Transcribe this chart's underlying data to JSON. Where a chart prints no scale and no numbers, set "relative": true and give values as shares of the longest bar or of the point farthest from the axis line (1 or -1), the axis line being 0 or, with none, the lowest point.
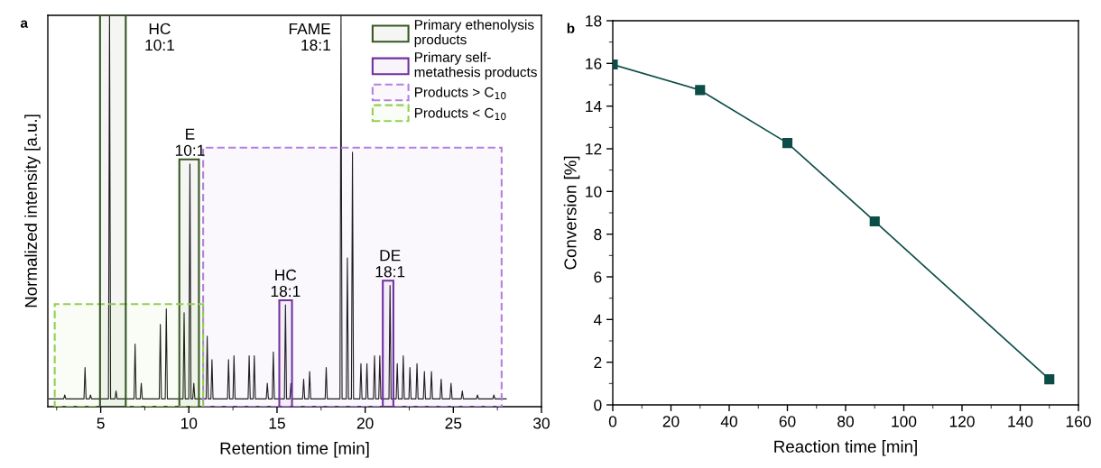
{
  "chart_data": [
    {
      "type": "line",
      "title": "a",
      "xlabel": "Retention time [min]",
      "ylabel": "Normalized intensity [a.u.]",
      "relative": true,
      "xlim": [
        2,
        30
      ],
      "xticks": [
        5,
        10,
        15,
        20,
        25,
        30
      ],
      "tick_labels": "x",
      "legend": "top right",
      "grid": false,
      "series": [
        {
          "color": "#1a1a1a",
          "x": [
            2.07,
            2.9,
            2.96,
            3.02,
            4.05,
            4.11,
            4.17,
            4.36,
            4.42,
            4.48,
            5.44,
            5.5,
            5.56,
            5.81,
            5.87,
            5.93,
            6.89,
            6.95,
            7.01,
            7.24,
            7.3,
            7.36,
            8.32,
            8.38,
            8.44,
            8.66,
            8.72,
            8.78,
            9.67,
            9.73,
            9.79,
            10.0,
            10.06,
            10.12,
            10.22,
            10.28,
            10.34,
            10.98,
            11.04,
            11.1,
            11.25,
            11.31,
            11.37,
            12.19,
            12.25,
            12.31,
            12.5,
            12.56,
            12.62,
            13.36,
            13.42,
            13.48,
            13.65,
            13.71,
            13.77,
            14.39,
            14.45,
            14.51,
            14.73,
            14.79,
            14.85,
            15.42,
            15.48,
            15.54,
            15.73,
            15.79,
            15.85,
            16.45,
            16.51,
            16.57,
            16.79,
            16.85,
            16.91,
            17.73,
            17.79,
            17.85,
            18.57,
            18.63,
            18.69,
            18.93,
            18.99,
            19.05,
            19.22,
            19.28,
            19.34,
            19.7,
            19.76,
            19.82,
            20.04,
            20.1,
            20.16,
            20.47,
            20.53,
            20.59,
            20.77,
            20.83,
            20.89,
            21.35,
            21.41,
            21.47,
            21.76,
            21.82,
            21.88,
            22.1,
            22.16,
            22.22,
            22.48,
            22.54,
            22.6,
            22.88,
            22.94,
            23.0,
            23.3,
            23.36,
            23.42,
            23.7,
            23.76,
            23.82,
            24.25,
            24.31,
            24.37,
            24.81,
            24.87,
            24.93,
            25.45,
            25.51,
            25.57,
            26.31,
            26.37,
            26.43,
            27.24,
            27.3,
            27.36,
            28.0
          ],
          "values": [
            0.02,
            0.02,
            0.03,
            0.02,
            0.02,
            0.1,
            0.02,
            0.02,
            0.03,
            0.02,
            0.02,
            1,
            0.02,
            0.02,
            0.04,
            0.02,
            0.02,
            0.16,
            0.02,
            0.02,
            0.06,
            0.02,
            0.02,
            0.21,
            0.02,
            0.02,
            0.25,
            0.02,
            0.02,
            0.24,
            0.02,
            0.02,
            0.62,
            0.02,
            0.02,
            0.06,
            0.02,
            0.02,
            0.18,
            0.02,
            0.02,
            0.12,
            0.02,
            0.02,
            0.12,
            0.02,
            0.02,
            0.13,
            0.02,
            0.02,
            0.13,
            0.02,
            0.02,
            0.13,
            0.02,
            0.02,
            0.06,
            0.02,
            0.02,
            0.14,
            0.02,
            0.02,
            0.26,
            0.02,
            0.02,
            0.06,
            0.02,
            0.02,
            0.07,
            0.02,
            0.02,
            0.09,
            0.02,
            0.02,
            0.1,
            0.02,
            0.02,
            1,
            0.02,
            0.02,
            0.38,
            0.02,
            0.02,
            0.65,
            0.02,
            0.02,
            0.11,
            0.02,
            0.02,
            0.11,
            0.02,
            0.02,
            0.13,
            0.02,
            0.02,
            0.13,
            0.02,
            0.02,
            0.31,
            0.02,
            0.02,
            0.11,
            0.02,
            0.02,
            0.13,
            0.02,
            0.02,
            0.1,
            0.02,
            0.02,
            0.11,
            0.02,
            0.02,
            0.09,
            0.02,
            0.02,
            0.09,
            0.02,
            0.02,
            0.07,
            0.02,
            0.02,
            0.06,
            0.02,
            0.02,
            0.04,
            0.02,
            0.02,
            0.03,
            0.02,
            0.02,
            0.03,
            0.02,
            0.02
          ]
        }
      ],
      "bands": [
        {
          "axis": "x",
          "from": 9.46,
          "to": 10.57,
          "label": "Primary ethenolysis\nproducts",
          "color": "#375623"
        },
        {
          "axis": "x",
          "from": 15.13,
          "to": 15.85,
          "label": "Primary self-\nmetathesis products",
          "color": "#7030a0"
        },
        {
          "axis": "x",
          "from": 10.81,
          "to": 27.74,
          "label": "Products > C$_{10}$",
          "color": "#b57fe0"
        },
        {
          "axis": "x",
          "from": 2.39,
          "to": 10.81,
          "label": "Products < C$_{10}$",
          "color": "#92d050"
        },
        {
          "axis": "x",
          "from": 4.96,
          "to": 6.42,
          "color": "#375623"
        },
        {
          "axis": "x",
          "from": 21.0,
          "to": 21.6,
          "color": "#7030a0"
        }
      ],
      "annotations": [
        {
          "text": "HC\n10:1",
          "x": 5.5,
          "y": 1
        },
        {
          "text": "E\n10:1",
          "x": 10.06,
          "y": 0.62
        },
        {
          "text": "FAME\n18:1",
          "x": 18.63,
          "y": 1
        },
        {
          "text": "HC\n18:1",
          "x": 15.48,
          "y": 0.26
        },
        {
          "text": "DE\n18:1",
          "x": 21.41,
          "y": 0.31
        }
      ]
    },
    {
      "type": "line",
      "title": "b",
      "xlabel": "Reaction time [min]",
      "ylabel": "Conversion [%]",
      "xlim": [
        0,
        160
      ],
      "xticks": [
        0,
        20,
        40,
        60,
        80,
        100,
        120,
        140,
        160
      ],
      "ylim": [
        0,
        18
      ],
      "yticks": [
        0,
        2,
        4,
        6,
        8,
        10,
        12,
        14,
        16,
        18
      ],
      "grid": false,
      "marker": "square",
      "line_style": "solid",
      "series": [
        {
          "color": "#0d4d48",
          "x": [
            0,
            30,
            60,
            90,
            150
          ],
          "values": [
            15.95,
            14.75,
            12.27,
            8.6,
            1.2
          ]
        }
      ]
    }
  ]
}
